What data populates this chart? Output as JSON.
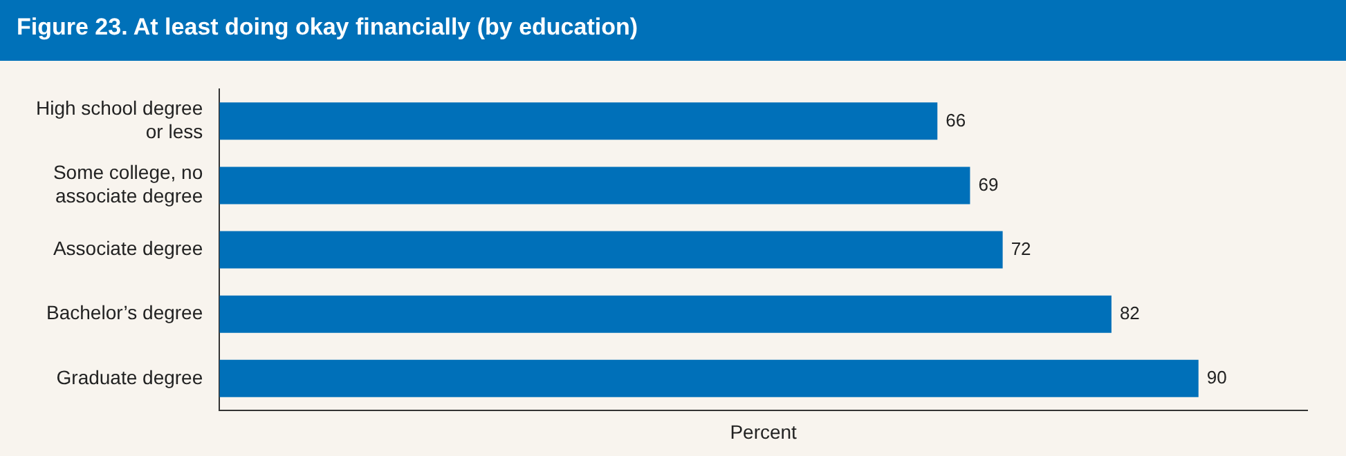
{
  "chart_data": {
    "type": "bar",
    "orientation": "horizontal",
    "title": "Figure 23. At least doing okay financially (by education)",
    "xlabel": "Percent",
    "categories": [
      "High school degree or less",
      "Some college, no associate degree",
      "Associate degree",
      "Bachelor’s degree",
      "Graduate degree"
    ],
    "values": [
      66,
      69,
      72,
      82,
      90
    ],
    "color": "#0070b9",
    "xlim": [
      0,
      100
    ],
    "data_labels": true,
    "grid": false,
    "legend": false,
    "tick_labels": "y"
  }
}
